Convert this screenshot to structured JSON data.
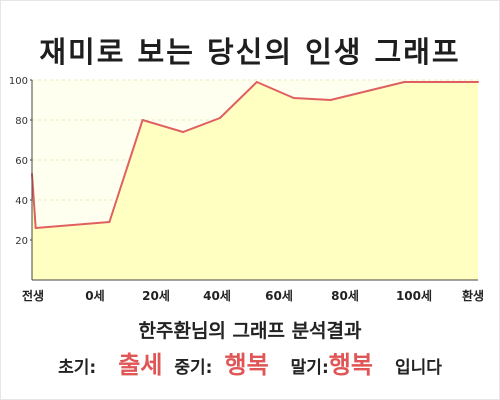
{
  "title": "재미로 보는 당신의 인생 그래프",
  "chart_data": {
    "type": "area",
    "x_labels": [
      "전생",
      "0세",
      "20세",
      "40세",
      "60세",
      "80세",
      "100세",
      "환생"
    ],
    "points": [
      {
        "x": -1,
        "y": 53
      },
      {
        "x": 0,
        "y": 26
      },
      {
        "x": 20,
        "y": 29
      },
      {
        "x": 29,
        "y": 80
      },
      {
        "x": 40,
        "y": 74
      },
      {
        "x": 50,
        "y": 81
      },
      {
        "x": 60,
        "y": 99
      },
      {
        "x": 70,
        "y": 91
      },
      {
        "x": 80,
        "y": 90
      },
      {
        "x": 100,
        "y": 99
      },
      {
        "x": 120,
        "y": 99
      }
    ],
    "y_ticks": [
      20,
      40,
      60,
      80,
      100
    ],
    "ylim": [
      0,
      100
    ],
    "grid": true,
    "line_color": "#e06060",
    "fill_color": "#ffffc2",
    "plot_bg": "#fffff0",
    "grid_color": "#e8e8c0"
  },
  "analysis": {
    "title": "한주환님의 그래프 분석결과"
  },
  "summary": {
    "early_label": "초기:",
    "early_value": "출세",
    "mid_label": "중기:",
    "mid_value": "행복",
    "late_label": "말기:",
    "late_value": "행복",
    "suffix": "입니다"
  }
}
